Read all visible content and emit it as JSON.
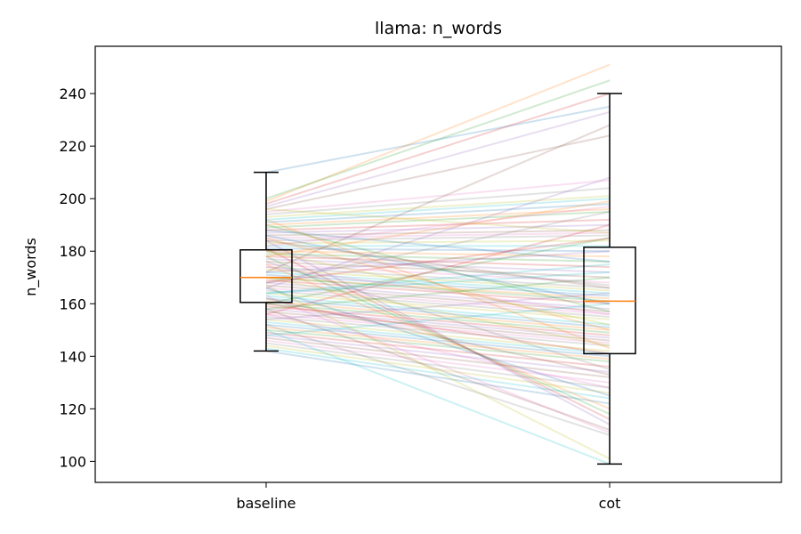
{
  "chart_data": {
    "type": "box",
    "title": "llama: n_words",
    "xlabel": "",
    "ylabel": "n_words",
    "categories": [
      "baseline",
      "cot"
    ],
    "ylim": [
      92,
      258
    ],
    "yticks": [
      100,
      120,
      140,
      160,
      180,
      200,
      220,
      240
    ],
    "grid": false,
    "boxes": [
      {
        "category": "baseline",
        "whisker_low": 142,
        "q1": 160.5,
        "median": 170,
        "q3": 180.5,
        "whisker_high": 210
      },
      {
        "category": "cot",
        "whisker_low": 99,
        "q1": 141,
        "median": 161,
        "q3": 181.5,
        "whisker_high": 240
      }
    ],
    "pairs": [
      [
        210,
        235
      ],
      [
        199,
        251
      ],
      [
        200,
        245
      ],
      [
        198,
        240
      ],
      [
        197,
        233
      ],
      [
        196,
        224
      ],
      [
        195,
        207
      ],
      [
        194,
        204
      ],
      [
        193,
        201
      ],
      [
        192,
        200
      ],
      [
        191,
        198
      ],
      [
        190,
        196
      ],
      [
        189,
        195
      ],
      [
        188,
        192
      ],
      [
        187,
        190
      ],
      [
        186,
        188
      ],
      [
        185,
        187
      ],
      [
        184,
        186
      ],
      [
        183,
        184
      ],
      [
        182,
        182
      ],
      [
        181,
        180
      ],
      [
        180,
        178
      ],
      [
        179,
        176
      ],
      [
        178,
        174
      ],
      [
        177,
        172
      ],
      [
        176,
        170
      ],
      [
        175,
        168
      ],
      [
        174,
        166
      ],
      [
        173,
        165
      ],
      [
        172,
        164
      ],
      [
        171,
        163
      ],
      [
        170,
        162
      ],
      [
        170,
        161
      ],
      [
        169,
        160
      ],
      [
        168,
        158
      ],
      [
        167,
        157
      ],
      [
        166,
        156
      ],
      [
        165,
        155
      ],
      [
        164,
        154
      ],
      [
        163,
        152
      ],
      [
        162,
        151
      ],
      [
        161,
        150
      ],
      [
        160,
        149
      ],
      [
        159,
        148
      ],
      [
        158,
        147
      ],
      [
        157,
        146
      ],
      [
        156,
        145
      ],
      [
        155,
        144
      ],
      [
        154,
        142
      ],
      [
        153,
        141
      ],
      [
        152,
        140
      ],
      [
        151,
        139
      ],
      [
        150,
        138
      ],
      [
        149,
        136
      ],
      [
        148,
        134
      ],
      [
        147,
        132
      ],
      [
        146,
        130
      ],
      [
        145,
        128
      ],
      [
        144,
        126
      ],
      [
        143,
        124
      ],
      [
        142,
        122
      ],
      [
        175,
        120
      ],
      [
        178,
        118
      ],
      [
        181,
        116
      ],
      [
        184,
        114
      ],
      [
        158,
        112
      ],
      [
        163,
        111
      ],
      [
        152,
        110
      ],
      [
        167,
        101
      ],
      [
        150,
        99
      ],
      [
        188,
        176
      ],
      [
        185,
        150
      ],
      [
        160,
        185
      ],
      [
        156,
        190
      ],
      [
        166,
        208
      ],
      [
        172,
        228
      ],
      [
        182,
        197
      ],
      [
        176,
        135
      ],
      [
        170,
        144
      ],
      [
        164,
        175
      ],
      [
        186,
        160
      ],
      [
        192,
        143
      ],
      [
        158,
        170
      ],
      [
        168,
        185
      ],
      [
        154,
        164
      ],
      [
        162,
        133
      ],
      [
        174,
        156
      ],
      [
        180,
        167
      ],
      [
        196,
        187
      ],
      [
        148,
        160
      ],
      [
        166,
        125
      ],
      [
        178,
        199
      ],
      [
        190,
        157
      ],
      [
        160,
        141
      ],
      [
        172,
        180
      ],
      [
        184,
        166
      ],
      [
        156,
        128
      ],
      [
        168,
        195
      ],
      [
        180,
        152
      ],
      [
        164,
        172
      ]
    ],
    "colors": {
      "box": "#000000",
      "median": "#ff7f0e",
      "lines": [
        "#1f77b4",
        "#ff7f0e",
        "#2ca02c",
        "#d62728",
        "#9467bd",
        "#8c564b",
        "#e377c2",
        "#7f7f7f",
        "#bcbd22",
        "#17becf"
      ]
    }
  }
}
